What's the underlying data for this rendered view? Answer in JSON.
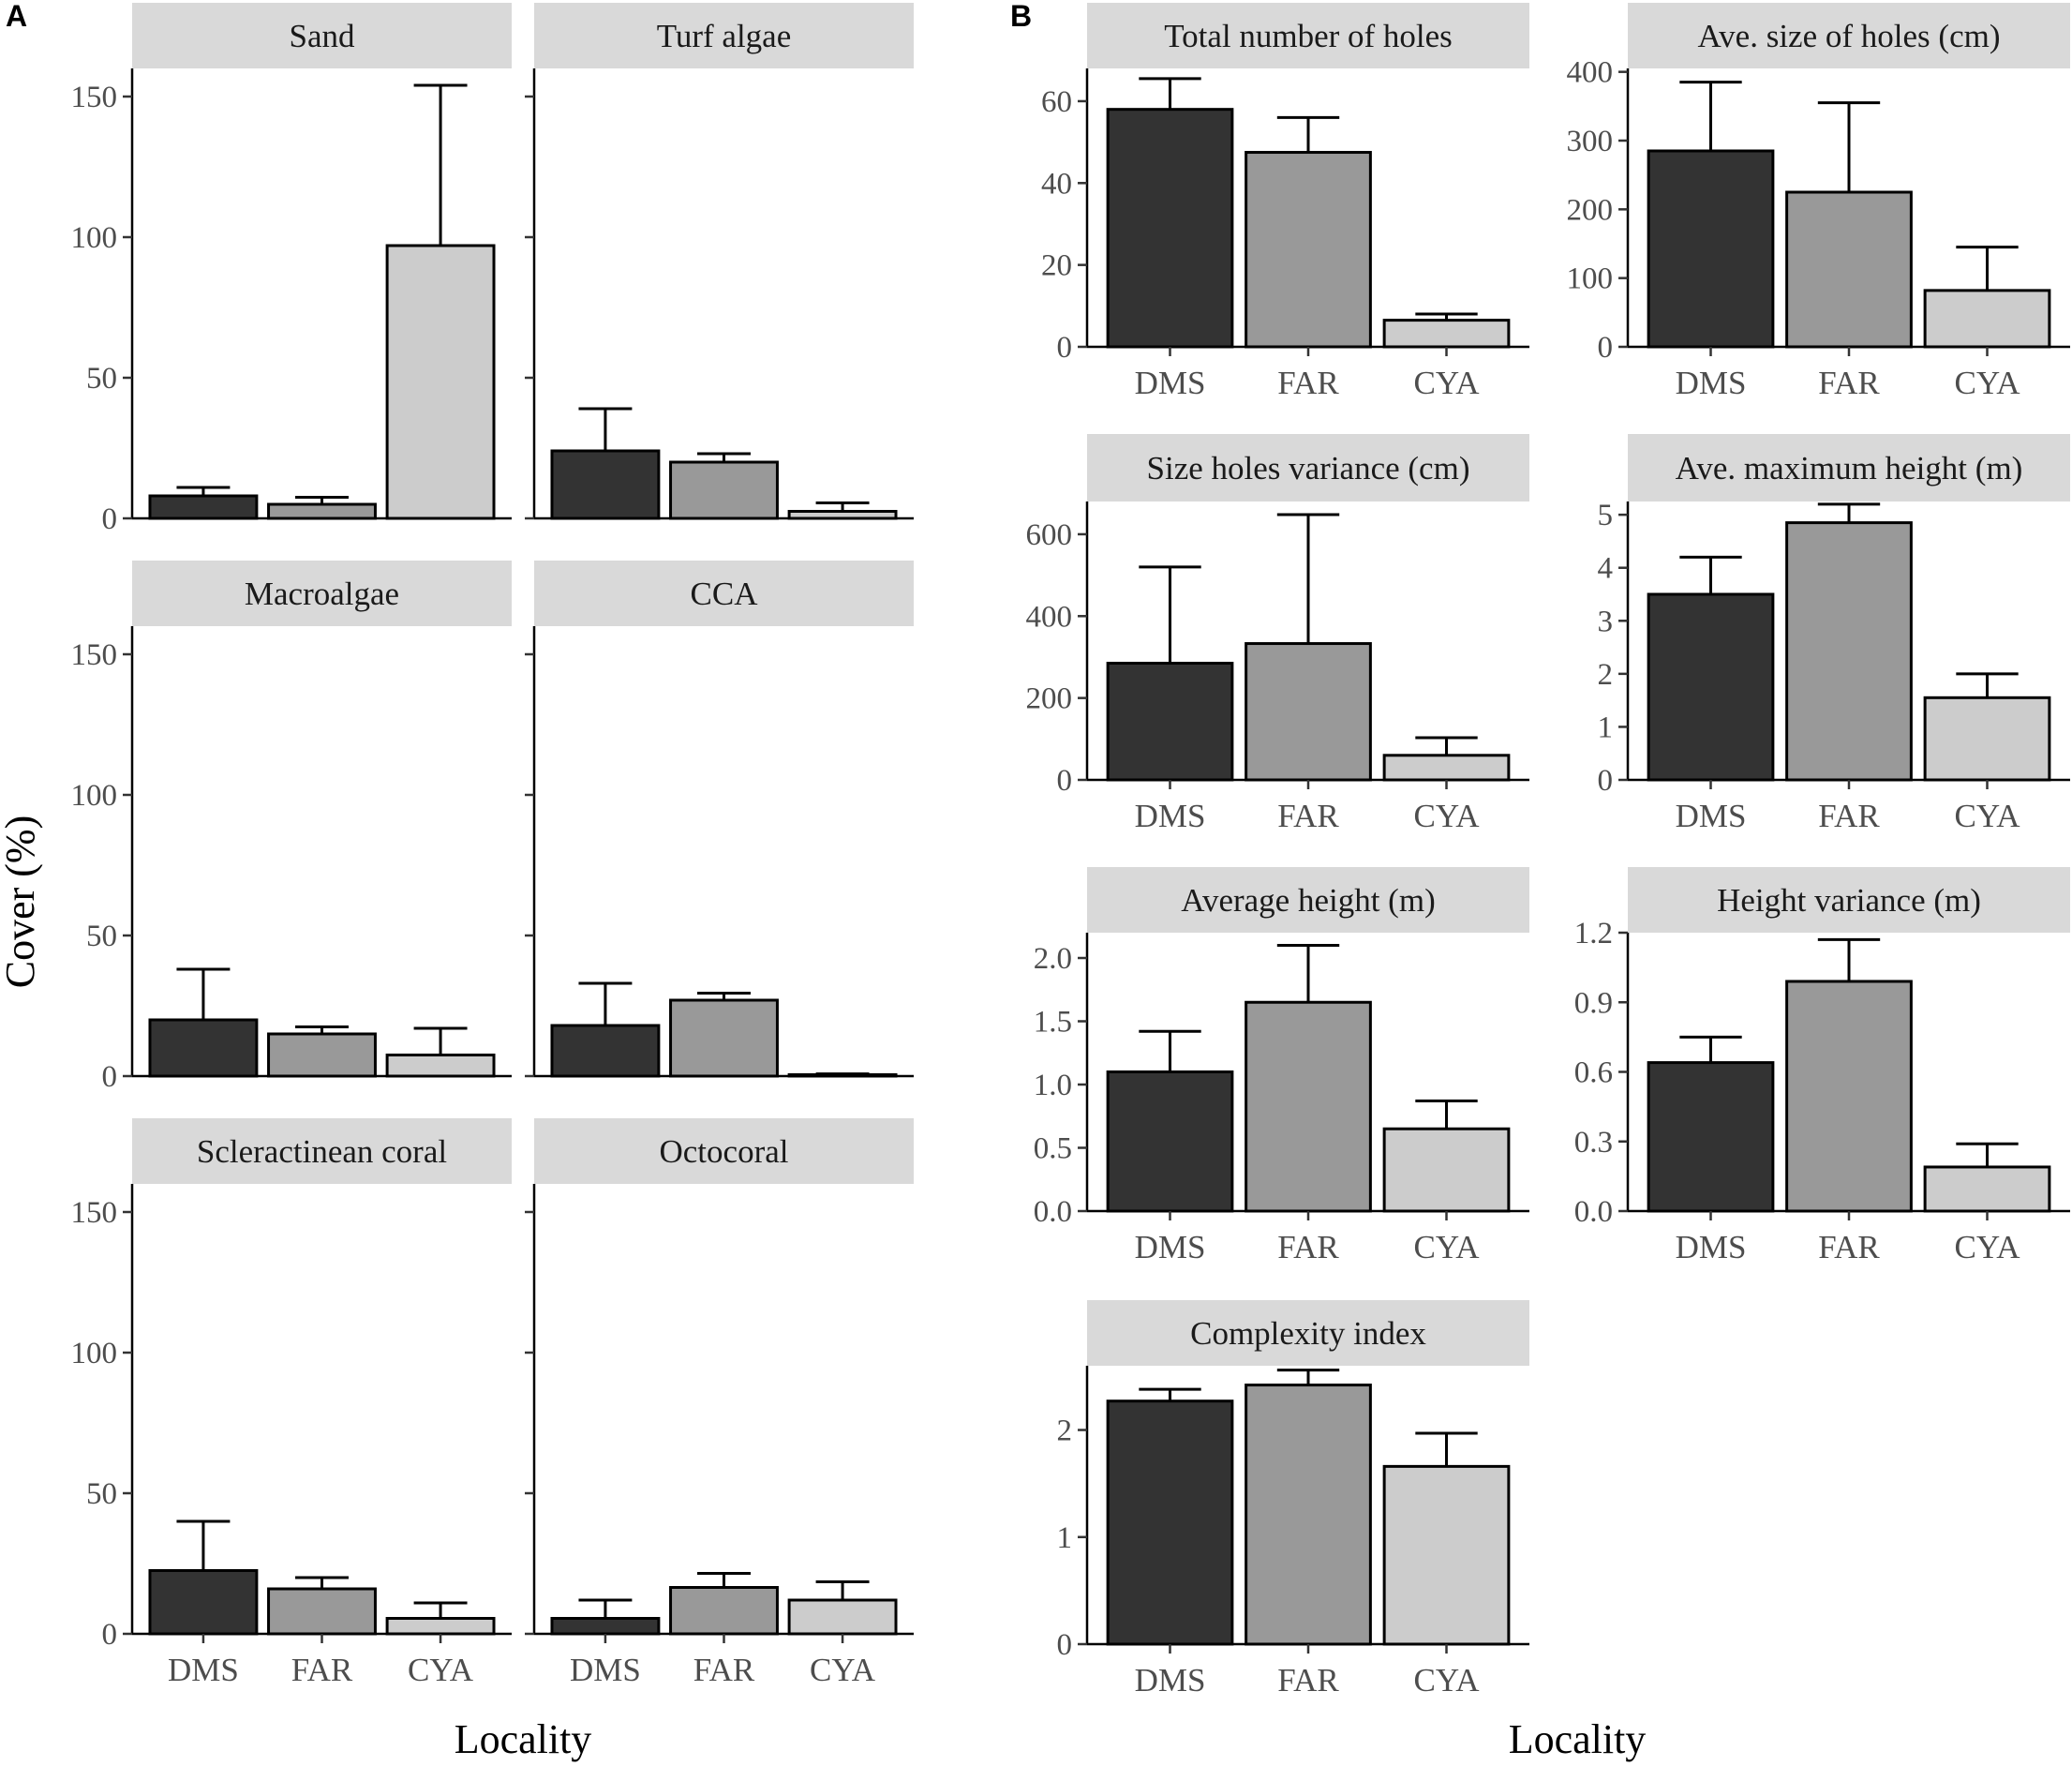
{
  "panel_labels": {
    "a": "A",
    "b": "B"
  },
  "colors": {
    "DMS": "#333333",
    "FAR": "#999999",
    "CYA": "#cccccc",
    "strip": "#d9d9d9",
    "ink": "#000000",
    "tick_text": "#4d4d4d"
  },
  "chart_data": [
    {
      "group": "A",
      "type": "bar",
      "title": "Sand",
      "categories": [
        "DMS",
        "FAR",
        "CYA"
      ],
      "values": [
        8,
        5,
        97
      ],
      "error_upper": [
        11,
        7.5,
        154
      ],
      "ylim": [
        0,
        160
      ],
      "yticks": [
        0,
        50,
        100,
        150
      ],
      "ytick_labels": [
        "0",
        "50",
        "100",
        "150"
      ],
      "show_xticks": false
    },
    {
      "group": "A",
      "type": "bar",
      "title": "Turf algae",
      "categories": [
        "DMS",
        "FAR",
        "CYA"
      ],
      "values": [
        24,
        20,
        2.5
      ],
      "error_upper": [
        39,
        23,
        5.5
      ],
      "ylim": [
        0,
        160
      ],
      "yticks": [
        0,
        50,
        100,
        150
      ],
      "ytick_labels": [],
      "show_xticks": false
    },
    {
      "group": "A",
      "type": "bar",
      "title": "Macroalgae",
      "categories": [
        "DMS",
        "FAR",
        "CYA"
      ],
      "values": [
        20,
        15,
        7.5
      ],
      "error_upper": [
        38,
        17.5,
        17
      ],
      "ylim": [
        0,
        160
      ],
      "yticks": [
        0,
        50,
        100,
        150
      ],
      "ytick_labels": [
        "0",
        "50",
        "100",
        "150"
      ],
      "show_xticks": false
    },
    {
      "group": "A",
      "type": "bar",
      "title": "CCA",
      "categories": [
        "DMS",
        "FAR",
        "CYA"
      ],
      "values": [
        18,
        27,
        0.5
      ],
      "error_upper": [
        33,
        29.5,
        0.8
      ],
      "ylim": [
        0,
        160
      ],
      "yticks": [
        0,
        50,
        100,
        150
      ],
      "ytick_labels": [],
      "show_xticks": false
    },
    {
      "group": "A",
      "type": "bar",
      "title": "Scleractinean coral",
      "categories": [
        "DMS",
        "FAR",
        "CYA"
      ],
      "values": [
        22.5,
        16,
        5.5
      ],
      "error_upper": [
        40,
        20,
        11
      ],
      "ylim": [
        0,
        160
      ],
      "yticks": [
        0,
        50,
        100,
        150
      ],
      "ytick_labels": [
        "0",
        "50",
        "100",
        "150"
      ],
      "show_xticks": true
    },
    {
      "group": "A",
      "type": "bar",
      "title": "Octocoral",
      "categories": [
        "DMS",
        "FAR",
        "CYA"
      ],
      "values": [
        5.5,
        16.5,
        12
      ],
      "error_upper": [
        12,
        21.5,
        18.5
      ],
      "ylim": [
        0,
        160
      ],
      "yticks": [
        0,
        50,
        100,
        150
      ],
      "ytick_labels": [],
      "show_xticks": true
    },
    {
      "group": "B",
      "type": "bar",
      "title": "Total number of holes",
      "categories": [
        "DMS",
        "FAR",
        "CYA"
      ],
      "values": [
        58,
        47.5,
        6.5
      ],
      "error_upper": [
        65.5,
        56,
        8
      ],
      "ylim": [
        0,
        68
      ],
      "yticks": [
        0,
        20,
        40,
        60
      ],
      "ytick_labels": [
        "0",
        "20",
        "40",
        "60"
      ],
      "show_xticks": true
    },
    {
      "group": "B",
      "type": "bar",
      "title": "Ave. size of holes (cm)",
      "categories": [
        "DMS",
        "FAR",
        "CYA"
      ],
      "values": [
        285,
        225,
        82
      ],
      "error_upper": [
        385,
        355,
        145
      ],
      "ylim": [
        0,
        405
      ],
      "yticks": [
        0,
        100,
        200,
        300,
        400
      ],
      "ytick_labels": [
        "0",
        "100",
        "200",
        "300",
        "400"
      ],
      "show_xticks": true
    },
    {
      "group": "B",
      "type": "bar",
      "title": "Size holes variance (cm)",
      "categories": [
        "DMS",
        "FAR",
        "CYA"
      ],
      "values": [
        285,
        333,
        60
      ],
      "error_upper": [
        520,
        648,
        103
      ],
      "ylim": [
        0,
        680
      ],
      "yticks": [
        0,
        200,
        400,
        600
      ],
      "ytick_labels": [
        "0",
        "200",
        "400",
        "600"
      ],
      "show_xticks": true
    },
    {
      "group": "B",
      "type": "bar",
      "title": "Ave. maximum height (m)",
      "categories": [
        "DMS",
        "FAR",
        "CYA"
      ],
      "values": [
        3.5,
        4.85,
        1.55
      ],
      "error_upper": [
        4.2,
        5.2,
        2.0
      ],
      "ylim": [
        0,
        5.25
      ],
      "yticks": [
        0,
        1,
        2,
        3,
        4,
        5
      ],
      "ytick_labels": [
        "0",
        "1",
        "2",
        "3",
        "4",
        "5"
      ],
      "show_xticks": true
    },
    {
      "group": "B",
      "type": "bar",
      "title": "Average height (m)",
      "categories": [
        "DMS",
        "FAR",
        "CYA"
      ],
      "values": [
        1.1,
        1.65,
        0.65
      ],
      "error_upper": [
        1.42,
        2.1,
        0.87
      ],
      "ylim": [
        0,
        2.2
      ],
      "yticks": [
        0,
        0.5,
        1.0,
        1.5,
        2.0
      ],
      "ytick_labels": [
        "0.0",
        "0.5",
        "1.0",
        "1.5",
        "2.0"
      ],
      "show_xticks": true
    },
    {
      "group": "B",
      "type": "bar",
      "title": "Height variance (m)",
      "categories": [
        "DMS",
        "FAR",
        "CYA"
      ],
      "values": [
        0.64,
        0.99,
        0.19
      ],
      "error_upper": [
        0.75,
        1.17,
        0.29
      ],
      "ylim": [
        0,
        1.2
      ],
      "yticks": [
        0,
        0.3,
        0.6,
        0.9,
        1.2
      ],
      "ytick_labels": [
        "0.0",
        "0.3",
        "0.6",
        "0.9",
        "1.2"
      ],
      "show_xticks": true
    },
    {
      "group": "B",
      "type": "bar",
      "title": "Complexity index",
      "categories": [
        "DMS",
        "FAR",
        "CYA"
      ],
      "values": [
        2.27,
        2.42,
        1.66
      ],
      "error_upper": [
        2.38,
        2.56,
        1.97
      ],
      "ylim": [
        0,
        2.6
      ],
      "yticks": [
        0,
        1,
        2
      ],
      "ytick_labels": [
        "0",
        "1",
        "2"
      ],
      "show_xticks": true
    }
  ],
  "axis_titles": {
    "a_y": "Cover (%)",
    "a_x": "Locality",
    "b_x": "Locality"
  }
}
